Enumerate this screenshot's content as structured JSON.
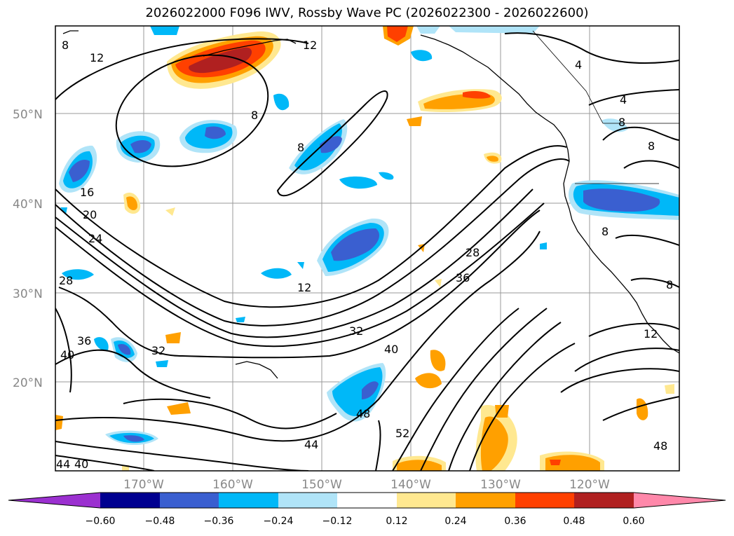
{
  "title": "2026022000 F096 IWV, Rossby Wave PC (2026022300 - 2026022600)",
  "lat_labels": [
    "50°N",
    "40°N",
    "30°N",
    "20°N"
  ],
  "lon_labels": [
    "170°W",
    "160°W",
    "150°W",
    "140°W",
    "130°W",
    "120°W"
  ],
  "contour_labels": [
    "8",
    "12",
    "12",
    "8",
    "8",
    "4",
    "4",
    "8",
    "8",
    "8",
    "16",
    "20",
    "24",
    "28",
    "28",
    "36",
    "40",
    "32",
    "32",
    "36",
    "12",
    "40",
    "48",
    "52",
    "44",
    "44",
    "40",
    "12",
    "8",
    "48"
  ],
  "colorbar": {
    "ticks": [
      "−0.60",
      "−0.48",
      "−0.36",
      "−0.24",
      "−0.12",
      "0.12",
      "0.24",
      "0.36",
      "0.48",
      "0.60"
    ],
    "colors": [
      "#9b30d0",
      "#000090",
      "#3a5fd0",
      "#00b8f8",
      "#b0e4f8",
      "#ffffff",
      "#ffe890",
      "#ffa000",
      "#ff4000",
      "#b02020",
      "#ff88aa"
    ]
  }
}
